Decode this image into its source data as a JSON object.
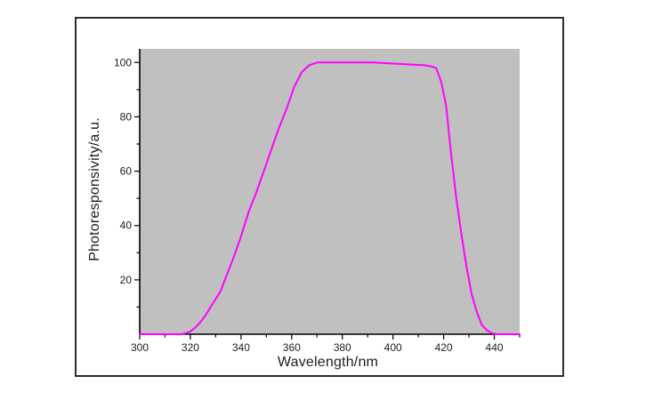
{
  "figure": {
    "frame_border_color": "#2e2e2e",
    "canvas_background": "#ffffff"
  },
  "colors": {
    "line": "#ff00ff",
    "plot_background": "#c0c0c0",
    "axis": "#000000",
    "text": "#1c1c1c"
  },
  "chart_data": {
    "type": "line",
    "title": "",
    "xlabel": "Wavelength/nm",
    "ylabel": "Photoresponsivity/a.u.",
    "xlim": [
      300,
      450
    ],
    "ylim": [
      0,
      105
    ],
    "grid": false,
    "legend_position": "none",
    "x_major_ticks": [
      300,
      320,
      340,
      360,
      380,
      400,
      420,
      440
    ],
    "x_minor_ticks": [
      310,
      330,
      350,
      370,
      390,
      410,
      430,
      450
    ],
    "y_major_ticks": [
      20,
      40,
      60,
      80,
      100
    ],
    "y_minor_ticks": [
      10,
      30,
      50,
      70,
      90
    ],
    "series": [
      {
        "name": "photoresponsivity",
        "color": "#ff00ff",
        "x": [
          300,
          304,
          308,
          312,
          316,
          318,
          320,
          322,
          324,
          326,
          328,
          330,
          332,
          334,
          337,
          340,
          343,
          346,
          349,
          352,
          355,
          358,
          361,
          364,
          367,
          370,
          373,
          376,
          380,
          384,
          388,
          392,
          396,
          400,
          404,
          408,
          412,
          415,
          417,
          419,
          421,
          423,
          425,
          427,
          429,
          431,
          433,
          435,
          437,
          439,
          441,
          444,
          447,
          450
        ],
        "y": [
          0,
          0,
          0,
          0,
          0,
          0.3,
          1,
          2.5,
          4.5,
          7,
          10,
          13,
          16,
          21,
          28,
          36,
          45,
          52,
          60,
          68,
          76,
          83,
          91,
          96.5,
          99,
          100,
          100,
          100,
          100,
          100,
          100,
          100,
          99.8,
          99.6,
          99.4,
          99.2,
          99,
          98.6,
          98,
          93,
          84,
          66,
          50,
          37,
          25,
          15,
          8.5,
          3.5,
          1.5,
          0.4,
          0,
          0,
          0,
          0
        ]
      }
    ]
  }
}
